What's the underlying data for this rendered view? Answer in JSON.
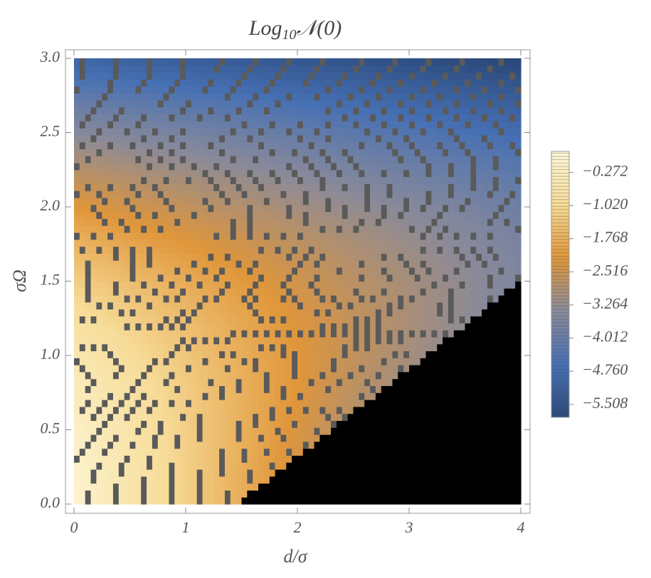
{
  "chart_data": {
    "type": "contour",
    "title": {
      "base": "Log",
      "sub": "10",
      "arg": "𝒩(0)"
    },
    "x_label": "d/σ",
    "y_label": "σΩ",
    "xlim": [
      0,
      4
    ],
    "ylim": [
      0,
      3
    ],
    "xticks": [
      0,
      1,
      2,
      3,
      4
    ],
    "yticks": [
      {
        "value": 0,
        "label": "0.0"
      },
      {
        "value": 0.5,
        "label": "0.5"
      },
      {
        "value": 1,
        "label": "1.0"
      },
      {
        "value": 1.5,
        "label": "1.5"
      },
      {
        "value": 2,
        "label": "2.0"
      },
      {
        "value": 2.5,
        "label": "2.5"
      },
      {
        "value": 3,
        "label": "3.0"
      }
    ],
    "colorbar_lim": [
      -5.8,
      0.2
    ],
    "colorbar_ticks": [
      {
        "value": -0.272,
        "label": "−0.272"
      },
      {
        "value": -1.02,
        "label": "−1.020"
      },
      {
        "value": -1.768,
        "label": "−1.768"
      },
      {
        "value": -2.516,
        "label": "−2.516"
      },
      {
        "value": -3.264,
        "label": "−3.264"
      },
      {
        "value": -4.012,
        "label": "−4.012"
      },
      {
        "value": -4.76,
        "label": "−4.760"
      },
      {
        "value": -5.508,
        "label": "−5.508"
      }
    ],
    "colormap": [
      "#2b4a7c",
      "#4670b4",
      "#8a8a99",
      "#e0963a",
      "#f7dc98",
      "#fdf7d8"
    ],
    "excluded_color": "#000000"
  }
}
